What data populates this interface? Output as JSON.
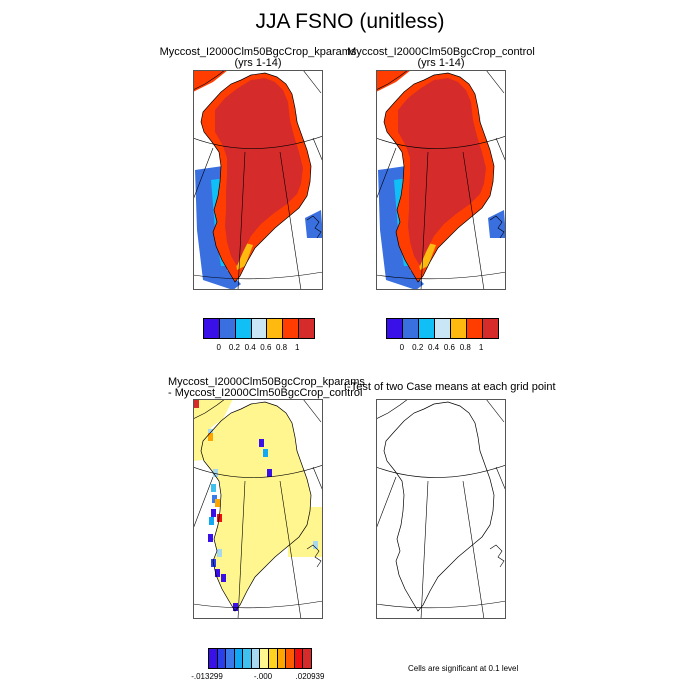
{
  "title": "JJA FSNO (unitless)",
  "panels": [
    {
      "title1": "Myccost_I2000Clm50BgcCrop_kparams",
      "title2": "(yrs 1-14)"
    },
    {
      "title1": "Myccost_I2000Clm50BgcCrop_control",
      "title2": "(yrs 1-14)"
    },
    {
      "title1": "Myccost_I2000Clm50BgcCrop_kparams",
      "title2": " - Myccost_I2000Clm50BgcCrop_control"
    },
    {
      "title1": "t-Test of two Case means at each grid point"
    }
  ],
  "colorbar_main": {
    "colors": [
      "#3A10E8",
      "#3A6FE0",
      "#10BFF5",
      "#C8E6F5",
      "#FFB90F",
      "#FF3D00",
      "#D52B2B"
    ],
    "labels": [
      "0",
      "0.2",
      "0.4",
      "0.6",
      "0.8",
      "1"
    ]
  },
  "colorbar_diff": {
    "colors": [
      "#3A10E8",
      "#2A3FEA",
      "#3A7AEA",
      "#10A8F5",
      "#40C0EE",
      "#A8D8F0",
      "#FFF68F",
      "#FFD21F",
      "#FFA500",
      "#FF5A00",
      "#EE1010",
      "#D52B2B"
    ],
    "labels": [
      "-.013299",
      "-.000",
      ".020939"
    ]
  },
  "significance_note": "Cells are significant at 0.1 level"
}
